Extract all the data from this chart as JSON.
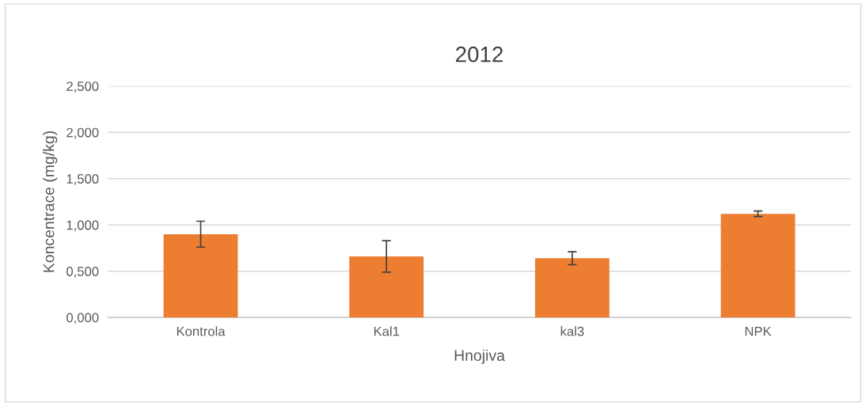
{
  "chart_data": {
    "type": "bar",
    "title": "2012",
    "xlabel": "Hnojiva",
    "ylabel": "Koncentrace (mg/kg)",
    "categories": [
      "Kontrola",
      "Kal1",
      "kal3",
      "NPK"
    ],
    "values": [
      0.9,
      0.66,
      0.64,
      1.12
    ],
    "errors": [
      0.14,
      0.17,
      0.07,
      0.03
    ],
    "color": "#ed7d31",
    "ylim": [
      0,
      2.5
    ],
    "yticks": [
      {
        "value": 0,
        "label": "0,000"
      },
      {
        "value": 0.5,
        "label": "0,500"
      },
      {
        "value": 1.0,
        "label": "1,000"
      },
      {
        "value": 1.5,
        "label": "1,500"
      },
      {
        "value": 2.0,
        "label": "2,000"
      },
      {
        "value": 2.5,
        "label": "2,500"
      }
    ],
    "grid": "y",
    "legend": false
  }
}
